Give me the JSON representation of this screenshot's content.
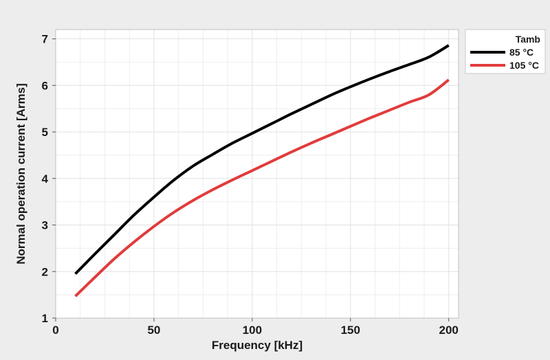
{
  "chart_data": {
    "type": "line",
    "title": "",
    "xlabel": "Frequency [kHz]",
    "ylabel": "Normal operation current [Arms]",
    "xlim": [
      0,
      205
    ],
    "ylim": [
      1,
      7.2
    ],
    "xticks": [
      0,
      50,
      100,
      150,
      200
    ],
    "yticks": [
      1,
      2,
      3,
      4,
      5,
      6,
      7
    ],
    "x_minor_step": 12.5,
    "y_minor_step": 0.5,
    "grid": true,
    "legend": {
      "title": "Tamb",
      "placement": "right-top-outside"
    },
    "series": [
      {
        "name": "85 °C",
        "color": "#000000",
        "x": [
          10,
          20,
          30,
          40,
          50,
          60,
          70,
          80,
          90,
          100,
          110,
          120,
          130,
          140,
          150,
          160,
          170,
          180,
          190,
          200
        ],
        "y": [
          1.95,
          2.38,
          2.8,
          3.22,
          3.6,
          3.96,
          4.27,
          4.52,
          4.76,
          4.97,
          5.18,
          5.39,
          5.59,
          5.79,
          5.97,
          6.14,
          6.3,
          6.45,
          6.61,
          6.86
        ]
      },
      {
        "name": "105 °C",
        "color": "#e23b3b",
        "x": [
          10,
          20,
          30,
          40,
          50,
          60,
          70,
          80,
          90,
          100,
          110,
          120,
          130,
          140,
          150,
          160,
          170,
          180,
          190,
          200
        ],
        "y": [
          1.47,
          1.88,
          2.28,
          2.64,
          2.97,
          3.27,
          3.53,
          3.76,
          3.97,
          4.17,
          4.37,
          4.57,
          4.76,
          4.94,
          5.12,
          5.3,
          5.47,
          5.64,
          5.8,
          6.12
        ]
      }
    ],
    "colors": {
      "background": "#ededed",
      "plot_background": "#ffffff",
      "grid_major": "#e1e1e1",
      "grid_minor": "#eeeeee",
      "axis_line": "#bfbfbf"
    }
  }
}
